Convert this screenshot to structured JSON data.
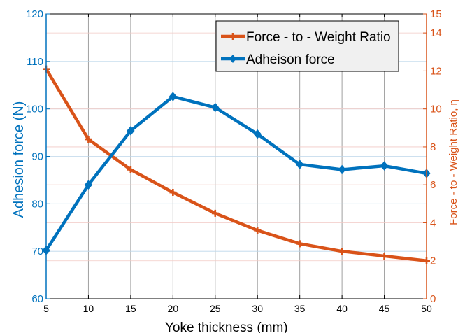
{
  "chart_data": {
    "type": "line",
    "x": [
      5,
      10,
      15,
      20,
      25,
      30,
      35,
      40,
      45,
      50
    ],
    "xlabel": "Yoke  thickness  (mm)",
    "xlim": [
      5,
      50
    ],
    "xticks": [
      "5",
      "10",
      "15",
      "20",
      "25",
      "30",
      "35",
      "40",
      "45",
      "50"
    ],
    "ylabel_left": "Adhesion  force  (N)",
    "ylim_left": [
      60,
      120
    ],
    "yticks_left": [
      "60",
      "70",
      "80",
      "90",
      "100",
      "110",
      "120"
    ],
    "ylabel_right": "Force - to - Weight  Ratio,  η",
    "ylim_right": [
      0,
      15
    ],
    "yticks_right": [
      "0",
      "2",
      "4",
      "6",
      "8",
      "10",
      "12",
      "14",
      "15"
    ],
    "series": [
      {
        "name": "Force - to - Weight  Ratio",
        "axis": "right",
        "color": "#d95319",
        "marker": "plus",
        "values": [
          12.1,
          8.4,
          6.8,
          5.6,
          4.5,
          3.6,
          2.9,
          2.5,
          2.25,
          2.0
        ]
      },
      {
        "name": "Adheison force",
        "axis": "left",
        "color": "#0072bd",
        "marker": "diamond",
        "values": [
          70.2,
          84.0,
          95.4,
          102.6,
          100.3,
          94.7,
          88.3,
          87.2,
          88.0,
          86.4
        ]
      }
    ],
    "grid": true,
    "legend_position": "top-right",
    "colors": {
      "left_axis": "#0072bd",
      "right_axis": "#d95319",
      "grid_vertical": "#a0a0a0",
      "grid_horizontal": "#f2c9c4"
    }
  }
}
